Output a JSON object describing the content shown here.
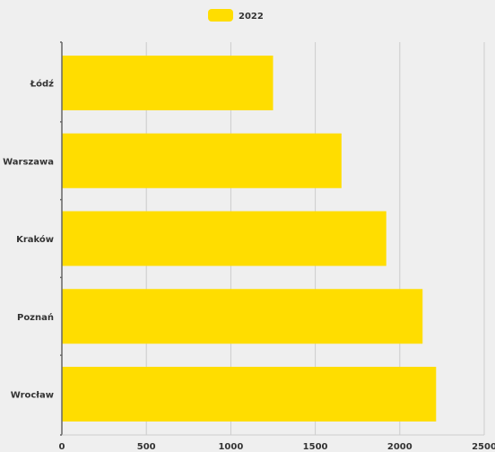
{
  "chart_data": {
    "type": "bar",
    "orientation": "horizontal",
    "categories": [
      "Łódź",
      "Warszawa",
      "Kraków",
      "Poznań",
      "Wrocław"
    ],
    "series": [
      {
        "name": "2022",
        "values": [
          1250,
          1655,
          1920,
          2135,
          2215
        ]
      }
    ],
    "xlim": [
      0,
      2500
    ],
    "xticks": [
      "0",
      "500",
      "1000",
      "1500",
      "2000",
      "2500"
    ],
    "grid": true,
    "legend_position": "top-center",
    "colors": {
      "bar": "#ffdd00",
      "grid": "#cccccc",
      "axis": "#666666",
      "background": "#efefef",
      "text": "#333333"
    }
  }
}
